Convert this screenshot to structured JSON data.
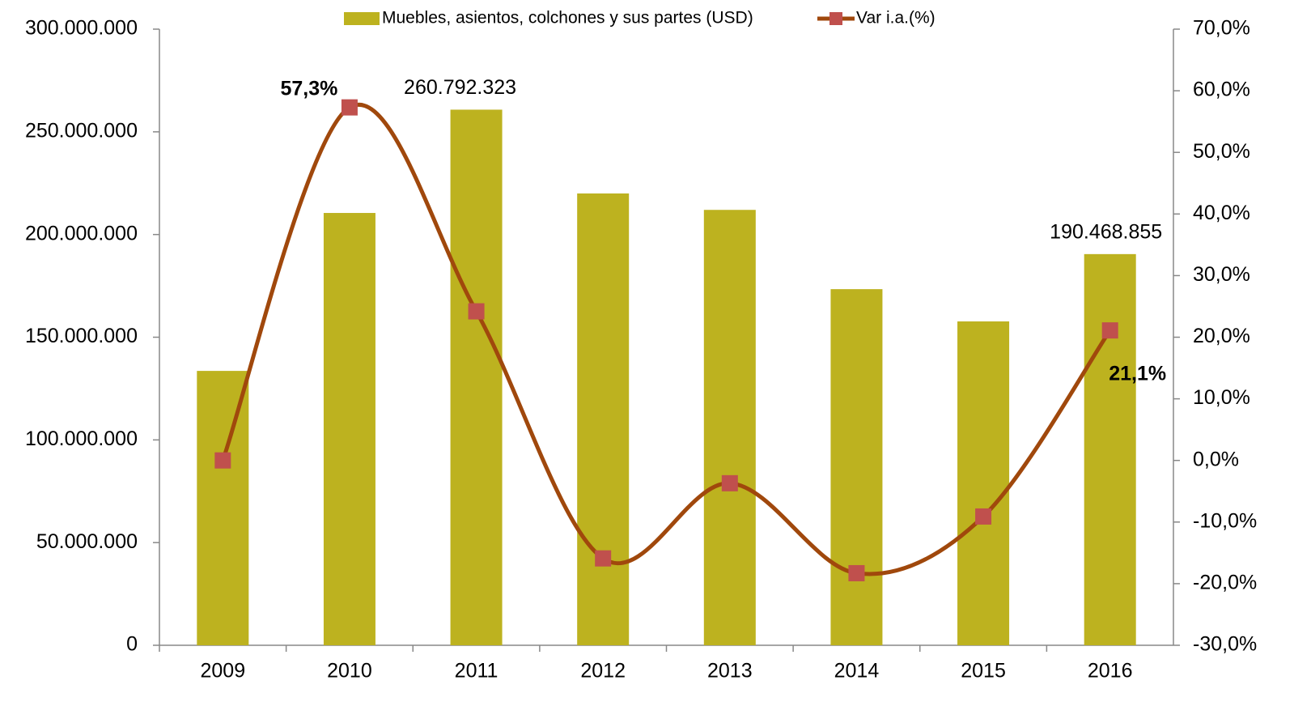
{
  "chart_data": {
    "type": "bar-line",
    "categories": [
      "2009",
      "2010",
      "2011",
      "2012",
      "2013",
      "2014",
      "2015",
      "2016"
    ],
    "series": [
      {
        "name": "Muebles, asientos, colchones y sus partes (USD)",
        "type": "bar",
        "color": "#bdb21f",
        "values": [
          133600000,
          210500000,
          260792323,
          220000000,
          212000000,
          173400000,
          157700000,
          190468855
        ],
        "value_labels": [
          null,
          null,
          "260.792.323",
          null,
          null,
          null,
          null,
          "190.468.855"
        ]
      },
      {
        "name": "Var i.a.(%)",
        "type": "line",
        "axis": "y2",
        "color": "#a0480c",
        "marker_color": "#c0504d",
        "values": [
          0,
          57.3,
          24.2,
          -15.9,
          -3.7,
          -18.3,
          -9.1,
          21.1
        ],
        "value_labels": [
          null,
          "57,3%",
          null,
          null,
          null,
          null,
          null,
          "21,1%"
        ]
      }
    ],
    "ylim": [
      0,
      300000000
    ],
    "yticks": [
      0,
      {
        "value": 50000000,
        "label": "50.000.000"
      },
      {
        "value": 100000000,
        "label": "100.000.000"
      },
      {
        "value": 150000000,
        "label": "150.000.000"
      },
      {
        "value": 200000000,
        "label": "200.000.000"
      },
      {
        "value": 250000000,
        "label": "250.000.000"
      },
      {
        "value": 300000000,
        "label": "300.000.000"
      }
    ],
    "y2lim": [
      -30,
      70
    ],
    "y2ticks": [
      {
        "value": -30,
        "label": "-30,0%"
      },
      {
        "value": -20,
        "label": "-20,0%"
      },
      {
        "value": -10,
        "label": "-10,0%"
      },
      {
        "value": 0,
        "label": "0,0%"
      },
      {
        "value": 10,
        "label": "10,0%"
      },
      {
        "value": 20,
        "label": "20,0%"
      },
      {
        "value": 30,
        "label": "30,0%"
      },
      {
        "value": 40,
        "label": "40,0%"
      },
      {
        "value": 50,
        "label": "50,0%"
      },
      {
        "value": 60,
        "label": "60,0%"
      },
      {
        "value": 70,
        "label": "70,0%"
      }
    ],
    "legend": "top"
  }
}
